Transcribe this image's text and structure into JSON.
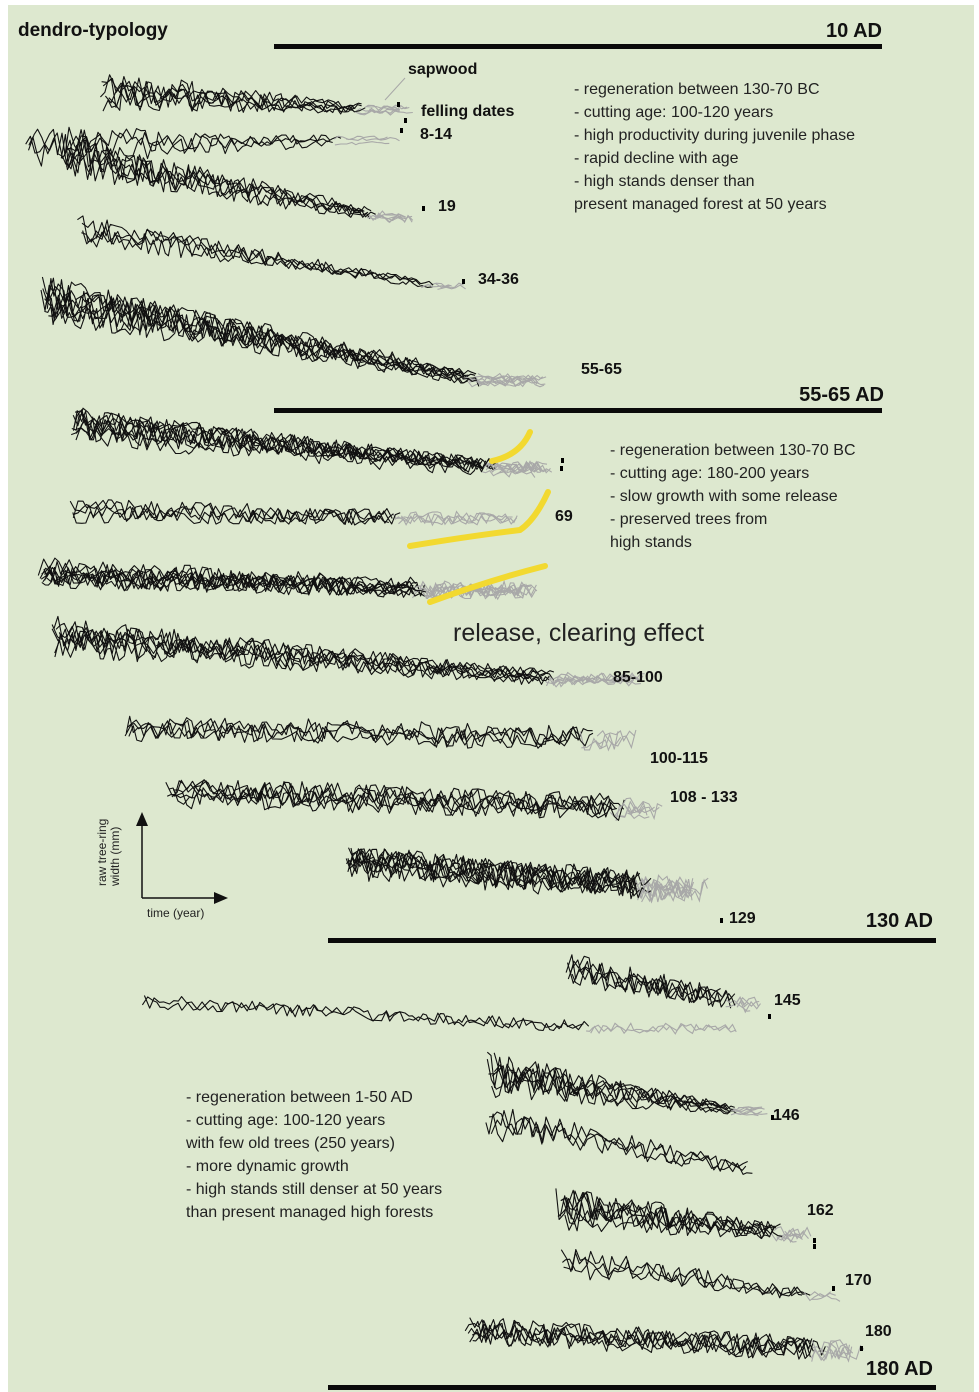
{
  "title": "dendro-typology",
  "eras": [
    "10 AD",
    "55-65 AD",
    "130 AD",
    "180 AD"
  ],
  "sapwood_label": "sapwood",
  "felling_label": "felling dates",
  "felling_dates": [
    "8-14",
    "19",
    "34-36",
    "55-65",
    "69",
    "85-100",
    "100-115",
    "108 - 133",
    "129",
    "145",
    "146",
    "162",
    "170",
    "180"
  ],
  "notes": {
    "group1": [
      "- regeneration between 130-70 BC",
      "- cutting age: 100-120 years",
      "- high productivity during juvenile phase",
      "- rapid decline with age",
      "- high stands denser than",
      "present managed forest at 50 years"
    ],
    "group2": [
      "- regeneration between 130-70 BC",
      "- cutting age: 180-200 years",
      "- slow growth with some release",
      "- preserved trees from",
      "high stands"
    ],
    "group3": [
      "- regeneration between 1-50 AD",
      "- cutting age: 100-120 years",
      "with few old trees (250 years)",
      "- more dynamic growth",
      "- high stands still denser at 50 years",
      "than present managed high forests"
    ]
  },
  "release_label": "release, clearing effect",
  "axis": {
    "y_label_1": "raw tree-ring",
    "y_label_2": "width (mm)",
    "x_label": "time (year)"
  },
  "colors": {
    "background": "#dde8cf",
    "series": "#111111",
    "sapwood": "#a8a8a8",
    "release": "#f2d930"
  }
}
